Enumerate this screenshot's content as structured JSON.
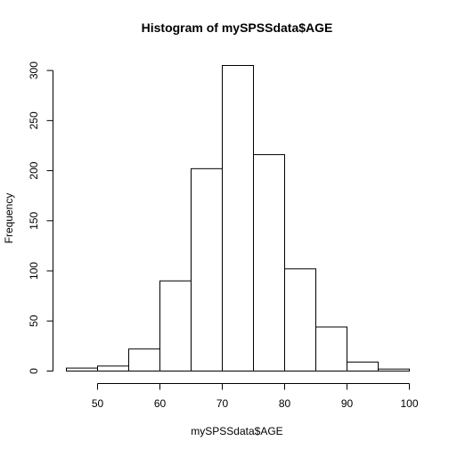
{
  "chart_data": {
    "type": "bar",
    "title": "Histogram of mySPSSdata$AGE",
    "xlabel": "mySPSSdata$AGE",
    "ylabel": "Frequency",
    "bins": [
      {
        "start": 45,
        "end": 50,
        "count": 3
      },
      {
        "start": 50,
        "end": 55,
        "count": 5
      },
      {
        "start": 55,
        "end": 60,
        "count": 22
      },
      {
        "start": 60,
        "end": 65,
        "count": 90
      },
      {
        "start": 65,
        "end": 70,
        "count": 202
      },
      {
        "start": 70,
        "end": 75,
        "count": 305
      },
      {
        "start": 75,
        "end": 80,
        "count": 216
      },
      {
        "start": 80,
        "end": 85,
        "count": 102
      },
      {
        "start": 85,
        "end": 90,
        "count": 44
      },
      {
        "start": 90,
        "end": 95,
        "count": 9
      },
      {
        "start": 95,
        "end": 100,
        "count": 2
      }
    ],
    "xticks": [
      50,
      60,
      70,
      80,
      90,
      100
    ],
    "yticks": [
      0,
      50,
      100,
      150,
      200,
      250,
      300
    ],
    "xlim": [
      45,
      100
    ],
    "ylim": [
      0,
      305
    ],
    "grid": false,
    "colors": {
      "fill": "#ffffff",
      "stroke": "#000000"
    }
  }
}
